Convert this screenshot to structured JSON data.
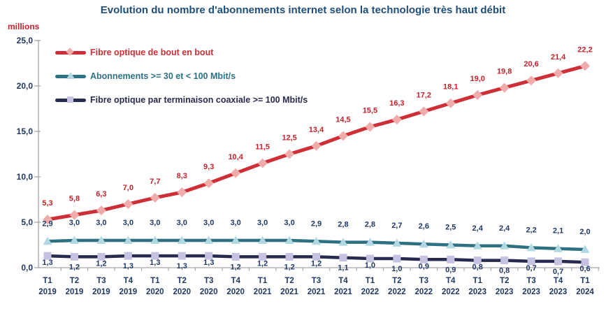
{
  "title": "Evolution du nombre d'abonnements internet selon la technologie très haut débit",
  "y_axis": {
    "unit_label": "millions",
    "yticks": [
      0,
      5,
      10,
      15,
      20,
      25
    ],
    "ytick_labels": [
      "0,0",
      "5,0",
      "10,0",
      "15,0",
      "20,0",
      "25,0"
    ]
  },
  "chart_data": {
    "type": "line",
    "title": "Evolution du nombre d'abonnements internet selon la technologie très haut débit",
    "xlabel": "",
    "ylabel": "millions",
    "ylim": [
      0,
      25
    ],
    "grid": false,
    "legend_position": "top-left",
    "decimal_separator": ",",
    "categories": [
      "T1 2019",
      "T2 2019",
      "T3 2019",
      "T4 2019",
      "T1 2020",
      "T2 2020",
      "T3 2020",
      "T4 2020",
      "T1 2021",
      "T2 2021",
      "T3 2021",
      "T4 2021",
      "T1 2022",
      "T2 2022",
      "T3 2022",
      "T4 2022",
      "T1 2023",
      "T2 2023",
      "T3 2023",
      "T4 2023",
      "T1 2024"
    ],
    "series": [
      {
        "name": "Fibre optique de bout en bout",
        "marker": "diamond",
        "color": "#CE2E35",
        "marker_color": "#F0ABAB",
        "label_color": "#C2232B",
        "label_position": "above",
        "values": [
          5.3,
          5.8,
          6.3,
          7.0,
          7.7,
          8.3,
          9.3,
          10.4,
          11.5,
          12.5,
          13.4,
          14.5,
          15.5,
          16.3,
          17.2,
          18.1,
          19.0,
          19.8,
          20.6,
          21.4,
          22.2
        ]
      },
      {
        "name": "Abonnements >= 30 et < 100 Mbit/s",
        "marker": "triangle",
        "color": "#2E7183",
        "marker_color": "#B2D8E4",
        "label_color": "#1F3864",
        "label_position": "above",
        "values": [
          2.9,
          3.0,
          3.0,
          3.0,
          3.0,
          3.0,
          3.0,
          3.0,
          3.0,
          3.0,
          2.9,
          2.8,
          2.8,
          2.7,
          2.6,
          2.5,
          2.4,
          2.4,
          2.2,
          2.1,
          2.0
        ]
      },
      {
        "name": "Fibre optique par terminaison coaxiale >= 100 Mbit/s",
        "marker": "square",
        "color": "#282B50",
        "marker_color": "#C5C3E1",
        "label_color": "#1F3864",
        "label_position": "below",
        "values": [
          1.3,
          1.2,
          1.2,
          1.3,
          1.3,
          1.3,
          1.3,
          1.2,
          1.2,
          1.2,
          1.2,
          1.1,
          1.0,
          1.0,
          0.9,
          0.9,
          0.8,
          0.8,
          0.7,
          0.7,
          0.6
        ]
      }
    ]
  },
  "colors": {
    "title": "#1F4E79",
    "axis_line": "#A6A6A6",
    "axis_text": "#1F3864",
    "millions_label": "#C2232B"
  }
}
